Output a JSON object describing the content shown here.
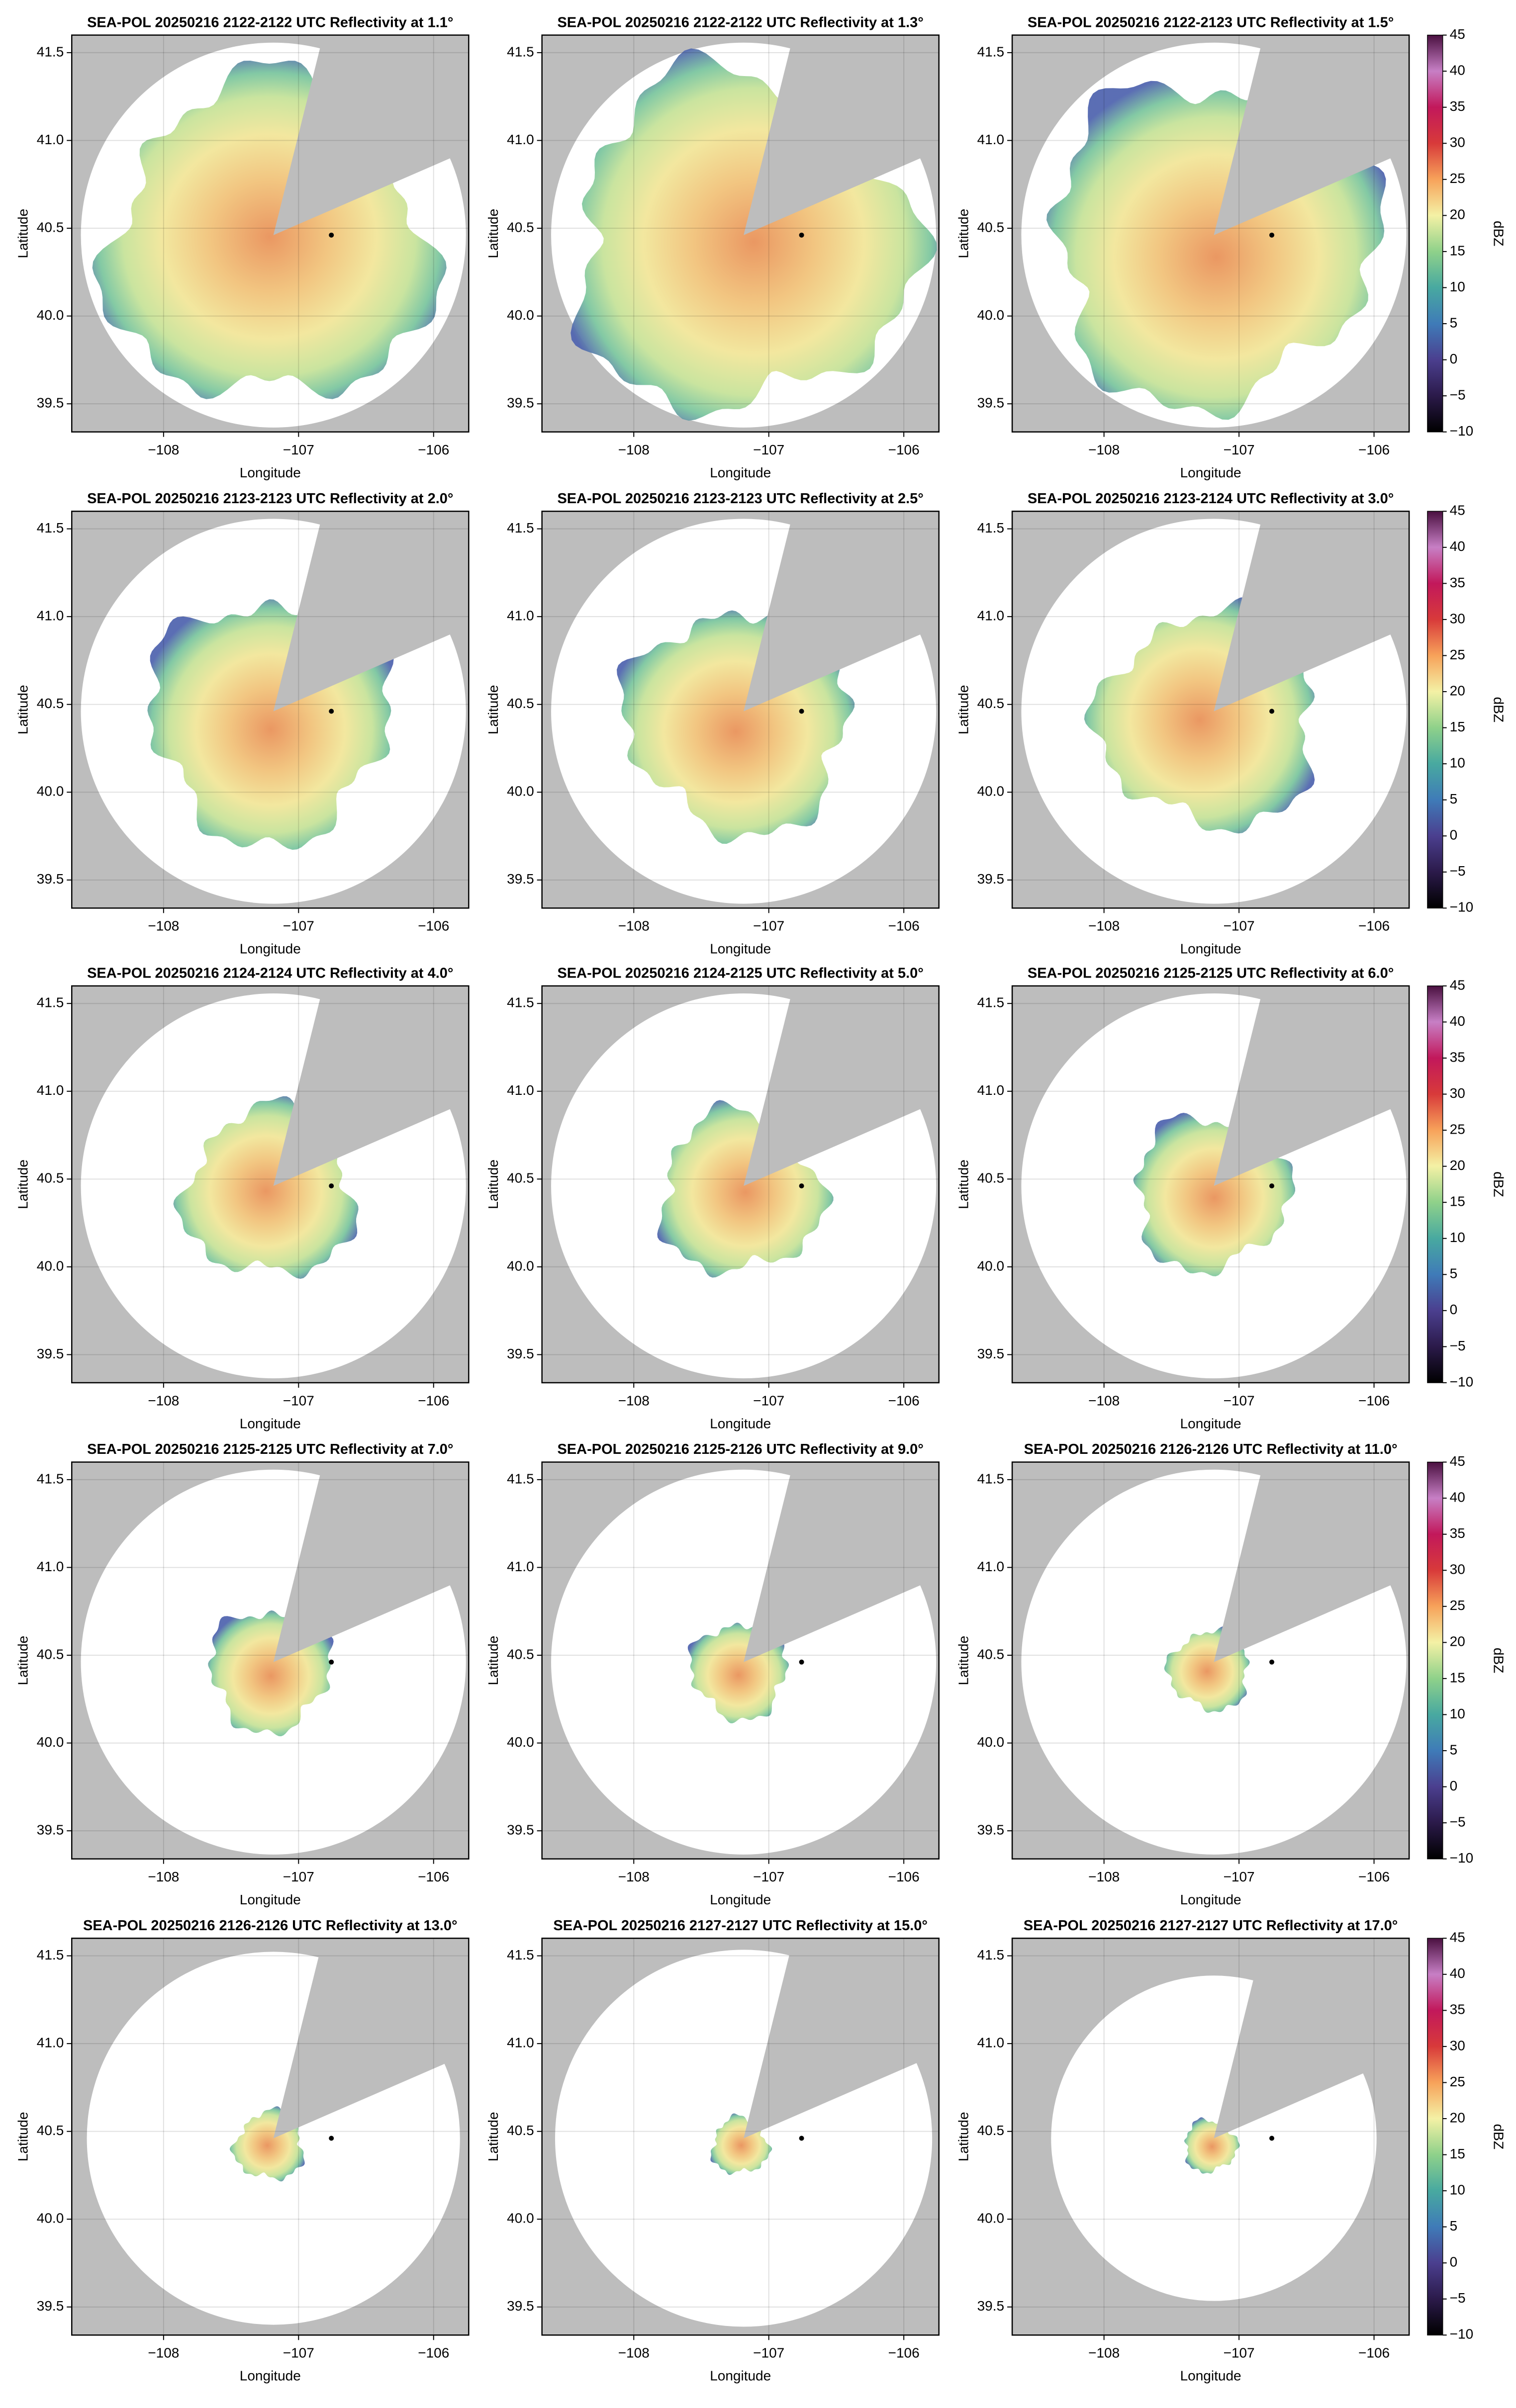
{
  "chart_data": [
    {
      "type": "radar",
      "title": "SEA-POL 20250216 2122-2122 UTC Reflectivity at 1.1°",
      "xlabel": "Longitude",
      "ylabel": "Latitude",
      "xlim": [
        -108.68,
        -105.74
      ],
      "ylim": [
        39.34,
        41.6
      ],
      "xticks": [
        {
          "value": -108,
          "label": "−108"
        },
        {
          "value": -107,
          "label": "−107"
        },
        {
          "value": -106,
          "label": "−106"
        }
      ],
      "yticks": [
        39.5,
        {
          "value": 40,
          "label": "40.0"
        },
        40.5,
        {
          "value": 41,
          "label": "41.0"
        },
        41.5
      ],
      "grid": true
    },
    {
      "type": "radar",
      "title": "SEA-POL 20250216 2122-2122 UTC Reflectivity at 1.3°",
      "xlabel": "Longitude",
      "ylabel": "Latitude",
      "xlim": [
        -108.68,
        -105.74
      ],
      "ylim": [
        39.34,
        41.6
      ],
      "xticks": [
        {
          "value": -108,
          "label": "−108"
        },
        {
          "value": -107,
          "label": "−107"
        },
        {
          "value": -106,
          "label": "−106"
        }
      ],
      "yticks": [
        39.5,
        {
          "value": 40,
          "label": "40.0"
        },
        40.5,
        {
          "value": 41,
          "label": "41.0"
        },
        41.5
      ],
      "grid": true
    },
    {
      "type": "radar",
      "title": "SEA-POL 20250216 2122-2123 UTC Reflectivity at 1.5°",
      "xlabel": "Longitude",
      "ylabel": "Latitude",
      "xlim": [
        -108.68,
        -105.74
      ],
      "ylim": [
        39.34,
        41.6
      ],
      "xticks": [
        {
          "value": -108,
          "label": "−108"
        },
        {
          "value": -107,
          "label": "−107"
        },
        {
          "value": -106,
          "label": "−106"
        }
      ],
      "yticks": [
        39.5,
        {
          "value": 40,
          "label": "40.0"
        },
        40.5,
        {
          "value": 41,
          "label": "41.0"
        },
        41.5
      ],
      "grid": true,
      "colorbar": {
        "label": "dBZ",
        "lim": [
          -10,
          45
        ],
        "ticks": [
          {
            "value": -10,
            "label": "−10"
          },
          {
            "value": -5,
            "label": "−5"
          },
          0,
          5,
          10,
          15,
          20,
          25,
          30,
          35,
          40,
          45
        ],
        "colormap": [
          "#000000",
          "#2b1a4a",
          "#4b3f8f",
          "#3f7bb8",
          "#48a9a0",
          "#8fd18a",
          "#f4f1a5",
          "#f7a25a",
          "#d83a3a",
          "#c2185b",
          "#c77fc5",
          "#4a1040"
        ]
      }
    },
    {
      "type": "radar",
      "title": "SEA-POL 20250216 2123-2123 UTC Reflectivity at 2.0°",
      "xlabel": "Longitude",
      "ylabel": "Latitude",
      "xlim": [
        -108.68,
        -105.74
      ],
      "ylim": [
        39.34,
        41.6
      ],
      "xticks": [
        {
          "value": -108,
          "label": "−108"
        },
        {
          "value": -107,
          "label": "−107"
        },
        {
          "value": -106,
          "label": "−106"
        }
      ],
      "yticks": [
        39.5,
        {
          "value": 40,
          "label": "40.0"
        },
        40.5,
        {
          "value": 41,
          "label": "41.0"
        },
        41.5
      ],
      "grid": true
    },
    {
      "type": "radar",
      "title": "SEA-POL 20250216 2123-2123 UTC Reflectivity at 2.5°",
      "xlabel": "Longitude",
      "ylabel": "Latitude",
      "xlim": [
        -108.68,
        -105.74
      ],
      "ylim": [
        39.34,
        41.6
      ],
      "xticks": [
        {
          "value": -108,
          "label": "−108"
        },
        {
          "value": -107,
          "label": "−107"
        },
        {
          "value": -106,
          "label": "−106"
        }
      ],
      "yticks": [
        39.5,
        {
          "value": 40,
          "label": "40.0"
        },
        40.5,
        {
          "value": 41,
          "label": "41.0"
        },
        41.5
      ],
      "grid": true
    },
    {
      "type": "radar",
      "title": "SEA-POL 20250216 2123-2124 UTC Reflectivity at 3.0°",
      "xlabel": "Longitude",
      "ylabel": "Latitude",
      "xlim": [
        -108.68,
        -105.74
      ],
      "ylim": [
        39.34,
        41.6
      ],
      "xticks": [
        {
          "value": -108,
          "label": "−108"
        },
        {
          "value": -107,
          "label": "−107"
        },
        {
          "value": -106,
          "label": "−106"
        }
      ],
      "yticks": [
        39.5,
        {
          "value": 40,
          "label": "40.0"
        },
        40.5,
        {
          "value": 41,
          "label": "41.0"
        },
        41.5
      ],
      "grid": true,
      "colorbar": {
        "label": "dBZ",
        "lim": [
          -10,
          45
        ],
        "ticks": [
          {
            "value": -10,
            "label": "−10"
          },
          {
            "value": -5,
            "label": "−5"
          },
          0,
          5,
          10,
          15,
          20,
          25,
          30,
          35,
          40,
          45
        ],
        "colormap": [
          "#000000",
          "#2b1a4a",
          "#4b3f8f",
          "#3f7bb8",
          "#48a9a0",
          "#8fd18a",
          "#f4f1a5",
          "#f7a25a",
          "#d83a3a",
          "#c2185b",
          "#c77fc5",
          "#4a1040"
        ]
      }
    },
    {
      "type": "radar",
      "title": "SEA-POL 20250216 2124-2124 UTC Reflectivity at 4.0°",
      "xlabel": "Longitude",
      "ylabel": "Latitude",
      "xlim": [
        -108.68,
        -105.74
      ],
      "ylim": [
        39.34,
        41.6
      ],
      "xticks": [
        {
          "value": -108,
          "label": "−108"
        },
        {
          "value": -107,
          "label": "−107"
        },
        {
          "value": -106,
          "label": "−106"
        }
      ],
      "yticks": [
        39.5,
        {
          "value": 40,
          "label": "40.0"
        },
        40.5,
        {
          "value": 41,
          "label": "41.0"
        },
        41.5
      ],
      "grid": true
    },
    {
      "type": "radar",
      "title": "SEA-POL 20250216 2124-2125 UTC Reflectivity at 5.0°",
      "xlabel": "Longitude",
      "ylabel": "Latitude",
      "xlim": [
        -108.68,
        -105.74
      ],
      "ylim": [
        39.34,
        41.6
      ],
      "xticks": [
        {
          "value": -108,
          "label": "−108"
        },
        {
          "value": -107,
          "label": "−107"
        },
        {
          "value": -106,
          "label": "−106"
        }
      ],
      "yticks": [
        39.5,
        {
          "value": 40,
          "label": "40.0"
        },
        40.5,
        {
          "value": 41,
          "label": "41.0"
        },
        41.5
      ],
      "grid": true
    },
    {
      "type": "radar",
      "title": "SEA-POL 20250216 2125-2125 UTC Reflectivity at 6.0°",
      "xlabel": "Longitude",
      "ylabel": "Latitude",
      "xlim": [
        -108.68,
        -105.74
      ],
      "ylim": [
        39.34,
        41.6
      ],
      "xticks": [
        {
          "value": -108,
          "label": "−108"
        },
        {
          "value": -107,
          "label": "−107"
        },
        {
          "value": -106,
          "label": "−106"
        }
      ],
      "yticks": [
        39.5,
        {
          "value": 40,
          "label": "40.0"
        },
        40.5,
        {
          "value": 41,
          "label": "41.0"
        },
        41.5
      ],
      "grid": true,
      "colorbar": {
        "label": "dBZ",
        "lim": [
          -10,
          45
        ],
        "ticks": [
          {
            "value": -10,
            "label": "−10"
          },
          {
            "value": -5,
            "label": "−5"
          },
          0,
          5,
          10,
          15,
          20,
          25,
          30,
          35,
          40,
          45
        ],
        "colormap": [
          "#000000",
          "#2b1a4a",
          "#4b3f8f",
          "#3f7bb8",
          "#48a9a0",
          "#8fd18a",
          "#f4f1a5",
          "#f7a25a",
          "#d83a3a",
          "#c2185b",
          "#c77fc5",
          "#4a1040"
        ]
      }
    },
    {
      "type": "radar",
      "title": "SEA-POL 20250216 2125-2125 UTC Reflectivity at 7.0°",
      "xlabel": "Longitude",
      "ylabel": "Latitude",
      "xlim": [
        -108.68,
        -105.74
      ],
      "ylim": [
        39.34,
        41.6
      ],
      "xticks": [
        {
          "value": -108,
          "label": "−108"
        },
        {
          "value": -107,
          "label": "−107"
        },
        {
          "value": -106,
          "label": "−106"
        }
      ],
      "yticks": [
        39.5,
        {
          "value": 40,
          "label": "40.0"
        },
        40.5,
        {
          "value": 41,
          "label": "41.0"
        },
        41.5
      ],
      "grid": true
    },
    {
      "type": "radar",
      "title": "SEA-POL 20250216 2125-2126 UTC Reflectivity at 9.0°",
      "xlabel": "Longitude",
      "ylabel": "Latitude",
      "xlim": [
        -108.68,
        -105.74
      ],
      "ylim": [
        39.34,
        41.6
      ],
      "xticks": [
        {
          "value": -108,
          "label": "−108"
        },
        {
          "value": -107,
          "label": "−107"
        },
        {
          "value": -106,
          "label": "−106"
        }
      ],
      "yticks": [
        39.5,
        {
          "value": 40,
          "label": "40.0"
        },
        40.5,
        {
          "value": 41,
          "label": "41.0"
        },
        41.5
      ],
      "grid": true
    },
    {
      "type": "radar",
      "title": "SEA-POL 20250216 2126-2126 UTC Reflectivity at 11.0°",
      "xlabel": "Longitude",
      "ylabel": "Latitude",
      "xlim": [
        -108.68,
        -105.74
      ],
      "ylim": [
        39.34,
        41.6
      ],
      "xticks": [
        {
          "value": -108,
          "label": "−108"
        },
        {
          "value": -107,
          "label": "−107"
        },
        {
          "value": -106,
          "label": "−106"
        }
      ],
      "yticks": [
        39.5,
        {
          "value": 40,
          "label": "40.0"
        },
        40.5,
        {
          "value": 41,
          "label": "41.0"
        },
        41.5
      ],
      "grid": true,
      "colorbar": {
        "label": "dBZ",
        "lim": [
          -10,
          45
        ],
        "ticks": [
          {
            "value": -10,
            "label": "−10"
          },
          {
            "value": -5,
            "label": "−5"
          },
          0,
          5,
          10,
          15,
          20,
          25,
          30,
          35,
          40,
          45
        ],
        "colormap": [
          "#000000",
          "#2b1a4a",
          "#4b3f8f",
          "#3f7bb8",
          "#48a9a0",
          "#8fd18a",
          "#f4f1a5",
          "#f7a25a",
          "#d83a3a",
          "#c2185b",
          "#c77fc5",
          "#4a1040"
        ]
      }
    },
    {
      "type": "radar",
      "title": "SEA-POL 20250216 2126-2126 UTC Reflectivity at 13.0°",
      "xlabel": "Longitude",
      "ylabel": "Latitude",
      "xlim": [
        -108.68,
        -105.74
      ],
      "ylim": [
        39.34,
        41.6
      ],
      "xticks": [
        {
          "value": -108,
          "label": "−108"
        },
        {
          "value": -107,
          "label": "−107"
        },
        {
          "value": -106,
          "label": "−106"
        }
      ],
      "yticks": [
        39.5,
        {
          "value": 40,
          "label": "40.0"
        },
        40.5,
        {
          "value": 41,
          "label": "41.0"
        },
        41.5
      ],
      "grid": true
    },
    {
      "type": "radar",
      "title": "SEA-POL 20250216 2127-2127 UTC Reflectivity at 15.0°",
      "xlabel": "Longitude",
      "ylabel": "Latitude",
      "xlim": [
        -108.68,
        -105.74
      ],
      "ylim": [
        39.34,
        41.6
      ],
      "xticks": [
        {
          "value": -108,
          "label": "−108"
        },
        {
          "value": -107,
          "label": "−107"
        },
        {
          "value": -106,
          "label": "−106"
        }
      ],
      "yticks": [
        39.5,
        {
          "value": 40,
          "label": "40.0"
        },
        40.5,
        {
          "value": 41,
          "label": "41.0"
        },
        41.5
      ],
      "grid": true
    },
    {
      "type": "radar",
      "title": "SEA-POL 20250216 2127-2127 UTC Reflectivity at 17.0°",
      "xlabel": "Longitude",
      "ylabel": "Latitude",
      "xlim": [
        -108.68,
        -105.74
      ],
      "ylim": [
        39.34,
        41.6
      ],
      "xticks": [
        {
          "value": -108,
          "label": "−108"
        },
        {
          "value": -107,
          "label": "−107"
        },
        {
          "value": -106,
          "label": "−106"
        }
      ],
      "yticks": [
        39.5,
        {
          "value": 40,
          "label": "40.0"
        },
        40.5,
        {
          "value": 41,
          "label": "41.0"
        },
        41.5
      ],
      "grid": true,
      "colorbar": {
        "label": "dBZ",
        "lim": [
          -10,
          45
        ],
        "ticks": [
          {
            "value": -10,
            "label": "−10"
          },
          {
            "value": -5,
            "label": "−5"
          },
          0,
          5,
          10,
          15,
          20,
          25,
          30,
          35,
          40,
          45
        ],
        "colormap": [
          "#000000",
          "#2b1a4a",
          "#4b3f8f",
          "#3f7bb8",
          "#48a9a0",
          "#8fd18a",
          "#f4f1a5",
          "#f7a25a",
          "#d83a3a",
          "#c2185b",
          "#c77fc5",
          "#4a1040"
        ]
      }
    }
  ]
}
